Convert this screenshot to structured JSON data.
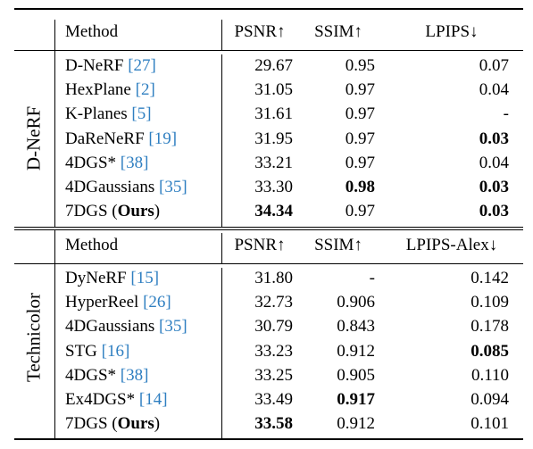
{
  "sections": [
    {
      "label": "D-NeRF",
      "headers": {
        "method": "Method",
        "psnr": "PSNR↑",
        "ssim": "SSIM↑",
        "lpips": "LPIPS↓"
      },
      "rows": [
        {
          "name": "D-NeRF ",
          "ref": "[27]",
          "psnr": "29.67",
          "ssim": "0.95",
          "lpips": "0.07",
          "bold": []
        },
        {
          "name": "HexPlane ",
          "ref": "[2]",
          "psnr": "31.05",
          "ssim": "0.97",
          "lpips": "0.04",
          "bold": []
        },
        {
          "name": "K-Planes ",
          "ref": "[5]",
          "psnr": "31.61",
          "ssim": "0.97",
          "lpips": "-",
          "bold": []
        },
        {
          "name": "DaReNeRF ",
          "ref": "[19]",
          "psnr": "31.95",
          "ssim": "0.97",
          "lpips": "0.03",
          "bold": [
            "lpips"
          ]
        },
        {
          "name": "4DGS* ",
          "ref": "[38]",
          "psnr": "33.21",
          "ssim": "0.97",
          "lpips": "0.04",
          "bold": []
        },
        {
          "name": "4DGaussians ",
          "ref": "[35]",
          "psnr": "33.30",
          "ssim": "0.98",
          "lpips": "0.03",
          "bold": [
            "ssim",
            "lpips"
          ]
        },
        {
          "name": "7DGS (",
          "ours": "Ours",
          "close": ")",
          "psnr": "34.34",
          "ssim": "0.97",
          "lpips": "0.03",
          "bold": [
            "psnr",
            "lpips"
          ]
        }
      ]
    },
    {
      "label": "Technicolor",
      "headers": {
        "method": "Method",
        "psnr": "PSNR↑",
        "ssim": "SSIM↑",
        "lpips": "LPIPS-Alex↓"
      },
      "rows": [
        {
          "name": "DyNeRF ",
          "ref": "[15]",
          "psnr": "31.80",
          "ssim": "-",
          "lpips": "0.142",
          "bold": []
        },
        {
          "name": "HyperReel ",
          "ref": "[26]",
          "psnr": "32.73",
          "ssim": "0.906",
          "lpips": "0.109",
          "bold": []
        },
        {
          "name": "4DGaussians ",
          "ref": "[35]",
          "psnr": "30.79",
          "ssim": "0.843",
          "lpips": "0.178",
          "bold": []
        },
        {
          "name": "STG ",
          "ref": "[16]",
          "psnr": "33.23",
          "ssim": "0.912",
          "lpips": "0.085",
          "bold": [
            "lpips"
          ]
        },
        {
          "name": "4DGS* ",
          "ref": "[38]",
          "psnr": "33.25",
          "ssim": "0.905",
          "lpips": "0.110",
          "bold": []
        },
        {
          "name": "Ex4DGS* ",
          "ref": "[14]",
          "psnr": "33.49",
          "ssim": "0.917",
          "lpips": "0.094",
          "bold": [
            "ssim"
          ]
        },
        {
          "name": "7DGS (",
          "ours": "Ours",
          "close": ")",
          "psnr": "33.58",
          "ssim": "0.912",
          "lpips": "0.101",
          "bold": [
            "psnr"
          ]
        }
      ]
    }
  ]
}
